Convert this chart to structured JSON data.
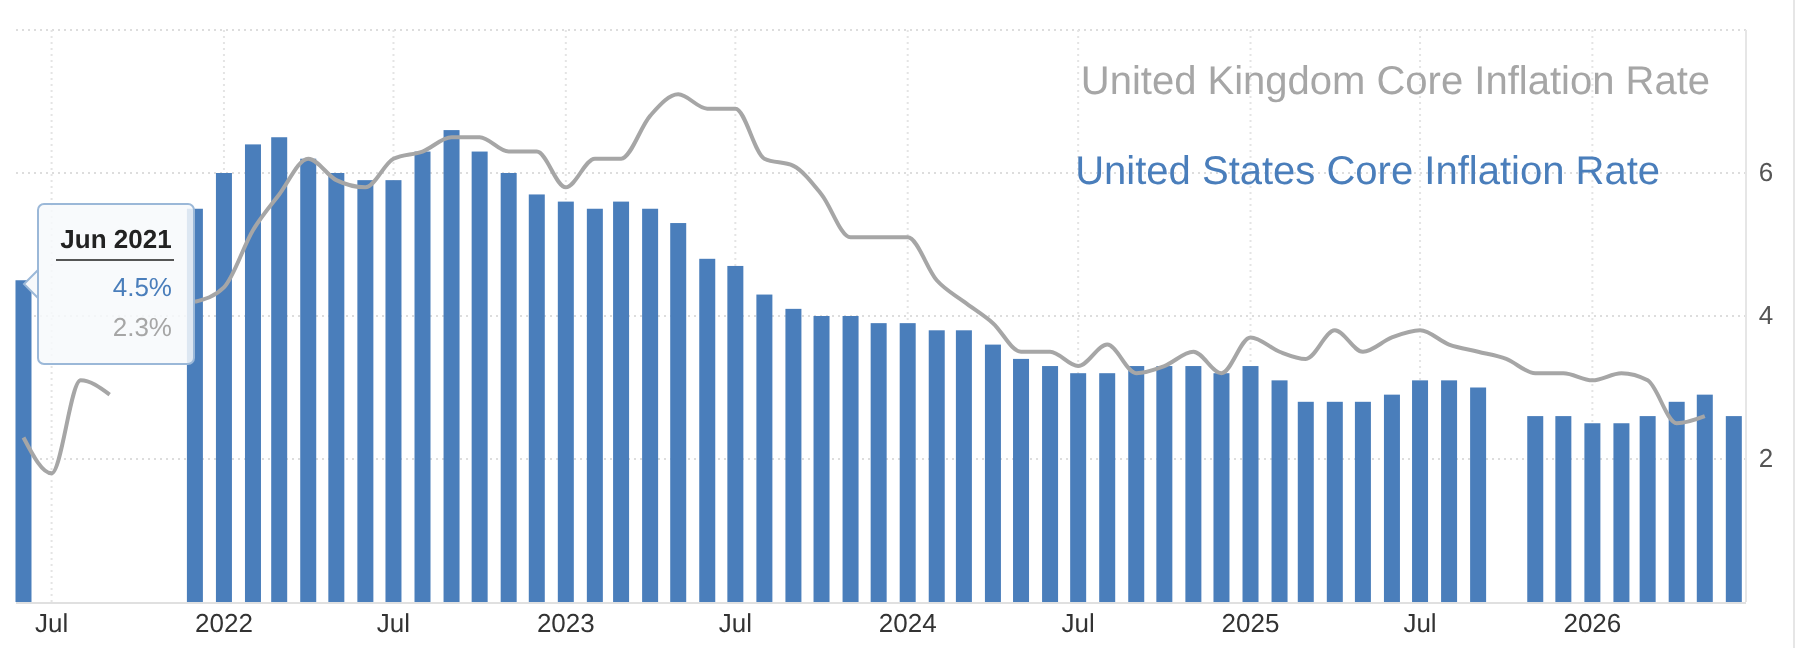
{
  "chart_data": {
    "type": "bar",
    "x": [
      "2021-06",
      "2021-07",
      "2021-08",
      "2021-09",
      "2021-10",
      "2021-11",
      "2021-12",
      "2022-01",
      "2022-02",
      "2022-03",
      "2022-04",
      "2022-05",
      "2022-06",
      "2022-07",
      "2022-08",
      "2022-09",
      "2022-10",
      "2022-11",
      "2022-12",
      "2023-01",
      "2023-02",
      "2023-03",
      "2023-04",
      "2023-05",
      "2023-06",
      "2023-07",
      "2023-08",
      "2023-09",
      "2023-10",
      "2023-11",
      "2023-12",
      "2024-01",
      "2024-02",
      "2024-03",
      "2024-04",
      "2024-05",
      "2024-06",
      "2024-07",
      "2024-08",
      "2024-09",
      "2024-10",
      "2024-11",
      "2024-12",
      "2025-01",
      "2025-02",
      "2025-03",
      "2025-04",
      "2025-05",
      "2025-06",
      "2025-07",
      "2025-08",
      "2025-09",
      "2025-10",
      "2025-11",
      "2025-12",
      "2026-01",
      "2026-02",
      "2026-03",
      "2026-04",
      "2026-05",
      "2026-06"
    ],
    "series": [
      {
        "name": "United Kingdom Core Inflation Rate",
        "type": "line",
        "color": "#a6a6a6",
        "values": [
          2.3,
          1.8,
          3.1,
          2.9,
          null,
          null,
          4.2,
          4.4,
          5.2,
          5.7,
          6.2,
          5.9,
          5.8,
          6.2,
          6.3,
          6.5,
          6.5,
          6.3,
          6.3,
          5.8,
          6.2,
          6.2,
          6.8,
          7.1,
          6.9,
          6.9,
          6.2,
          6.1,
          5.7,
          5.1,
          5.1,
          5.1,
          4.5,
          4.2,
          3.9,
          3.5,
          3.5,
          3.3,
          3.6,
          3.2,
          3.3,
          3.5,
          3.2,
          3.7,
          3.5,
          3.4,
          3.8,
          3.5,
          3.7,
          3.8,
          3.6,
          3.5,
          3.4,
          3.2,
          3.2,
          3.1,
          3.2,
          3.1,
          2.5,
          2.6,
          null
        ]
      },
      {
        "name": "United States Core Inflation Rate",
        "color": "#4a7ebb",
        "values": [
          4.5,
          null,
          null,
          null,
          null,
          null,
          5.5,
          6.0,
          6.4,
          6.5,
          6.2,
          6.0,
          5.9,
          5.9,
          6.3,
          6.6,
          6.3,
          6.0,
          5.7,
          5.6,
          5.5,
          5.6,
          5.5,
          5.3,
          4.8,
          4.7,
          4.3,
          4.1,
          4.0,
          4.0,
          3.9,
          3.9,
          3.8,
          3.8,
          3.6,
          3.4,
          3.3,
          3.2,
          3.2,
          3.3,
          3.3,
          3.3,
          3.2,
          3.3,
          3.1,
          2.8,
          2.8,
          2.8,
          2.9,
          3.1,
          3.1,
          3.0,
          null,
          2.6,
          2.6,
          2.5,
          2.5,
          2.6,
          2.8,
          2.9,
          2.6
        ]
      }
    ],
    "xlim": [
      "2021-05-24",
      "2026-06-14"
    ],
    "xticks": [
      {
        "value": "2021-07",
        "label": "Jul"
      },
      {
        "value": "2022-01",
        "label": "2022"
      },
      {
        "value": "2022-07",
        "label": "Jul"
      },
      {
        "value": "2023-01",
        "label": "2023"
      },
      {
        "value": "2023-07",
        "label": "Jul"
      },
      {
        "value": "2024-01",
        "label": "2024"
      },
      {
        "value": "2024-07",
        "label": "Jul"
      },
      {
        "value": "2025-01",
        "label": "2025"
      },
      {
        "value": "2025-07",
        "label": "Jul"
      },
      {
        "value": "2026-01",
        "label": "2026"
      }
    ],
    "ylim": [
      0,
      8
    ],
    "yticks": [
      2,
      4,
      6,
      {
        "value": 8,
        "label": null
      }
    ],
    "grid": true,
    "legend": "top right",
    "annotations": [
      "Jun 2021",
      "4.5%",
      "2.3%"
    ]
  }
}
